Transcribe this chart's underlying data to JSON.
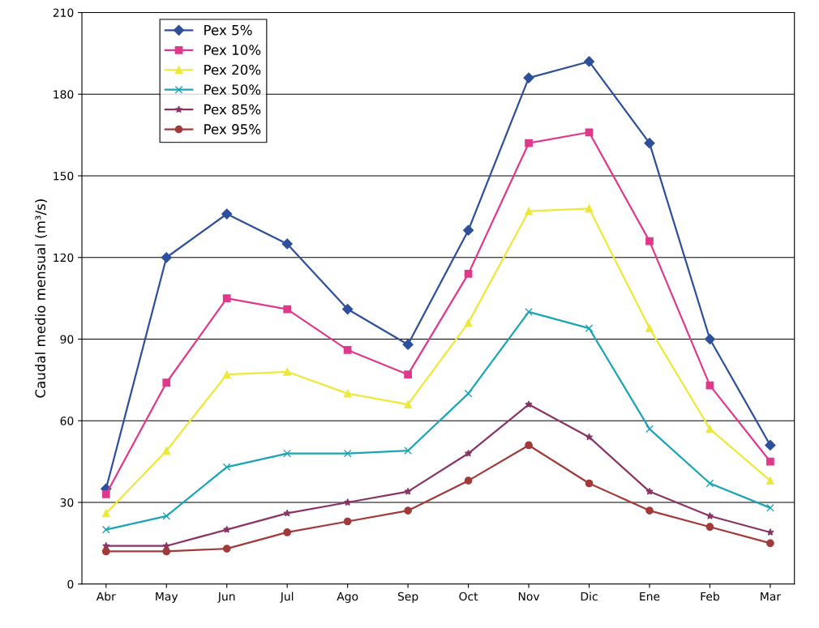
{
  "chart_data": {
    "type": "line",
    "ylabel": "Caudal medio mensual (m³/s)",
    "categories": [
      "Abr",
      "May",
      "Jun",
      "Jul",
      "Ago",
      "Sep",
      "Oct",
      "Nov",
      "Dic",
      "Ene",
      "Feb",
      "Mar"
    ],
    "series": [
      {
        "name": "Pex 5%",
        "color": "#2e4f9a",
        "marker": "diamond",
        "values": [
          35,
          120,
          136,
          125,
          101,
          88,
          130,
          186,
          192,
          162,
          90,
          51
        ]
      },
      {
        "name": "Pex 10%",
        "color": "#e0398c",
        "marker": "square",
        "values": [
          33,
          74,
          105,
          101,
          86,
          77,
          114,
          162,
          166,
          126,
          73,
          45
        ]
      },
      {
        "name": "Pex 20%",
        "color": "#ede83a",
        "marker": "triangle",
        "values": [
          26,
          49,
          77,
          78,
          70,
          66,
          96,
          137,
          138,
          94,
          57,
          38
        ]
      },
      {
        "name": "Pex 50%",
        "color": "#1aa5b5",
        "marker": "cross",
        "values": [
          20,
          25,
          43,
          48,
          48,
          49,
          70,
          100,
          94,
          57,
          37,
          28
        ]
      },
      {
        "name": "Pex 85%",
        "color": "#8a3466",
        "marker": "star",
        "values": [
          14,
          14,
          20,
          26,
          30,
          34,
          48,
          66,
          54,
          34,
          25,
          19
        ]
      },
      {
        "name": "Pex 95%",
        "color": "#a33a3a",
        "marker": "circle",
        "values": [
          12,
          12,
          13,
          19,
          23,
          27,
          38,
          51,
          37,
          27,
          21,
          15
        ]
      }
    ],
    "ylim": [
      0,
      210
    ],
    "yticks": [
      0,
      30,
      60,
      90,
      120,
      150,
      180,
      210
    ],
    "grid": "y",
    "legend": "top left"
  }
}
